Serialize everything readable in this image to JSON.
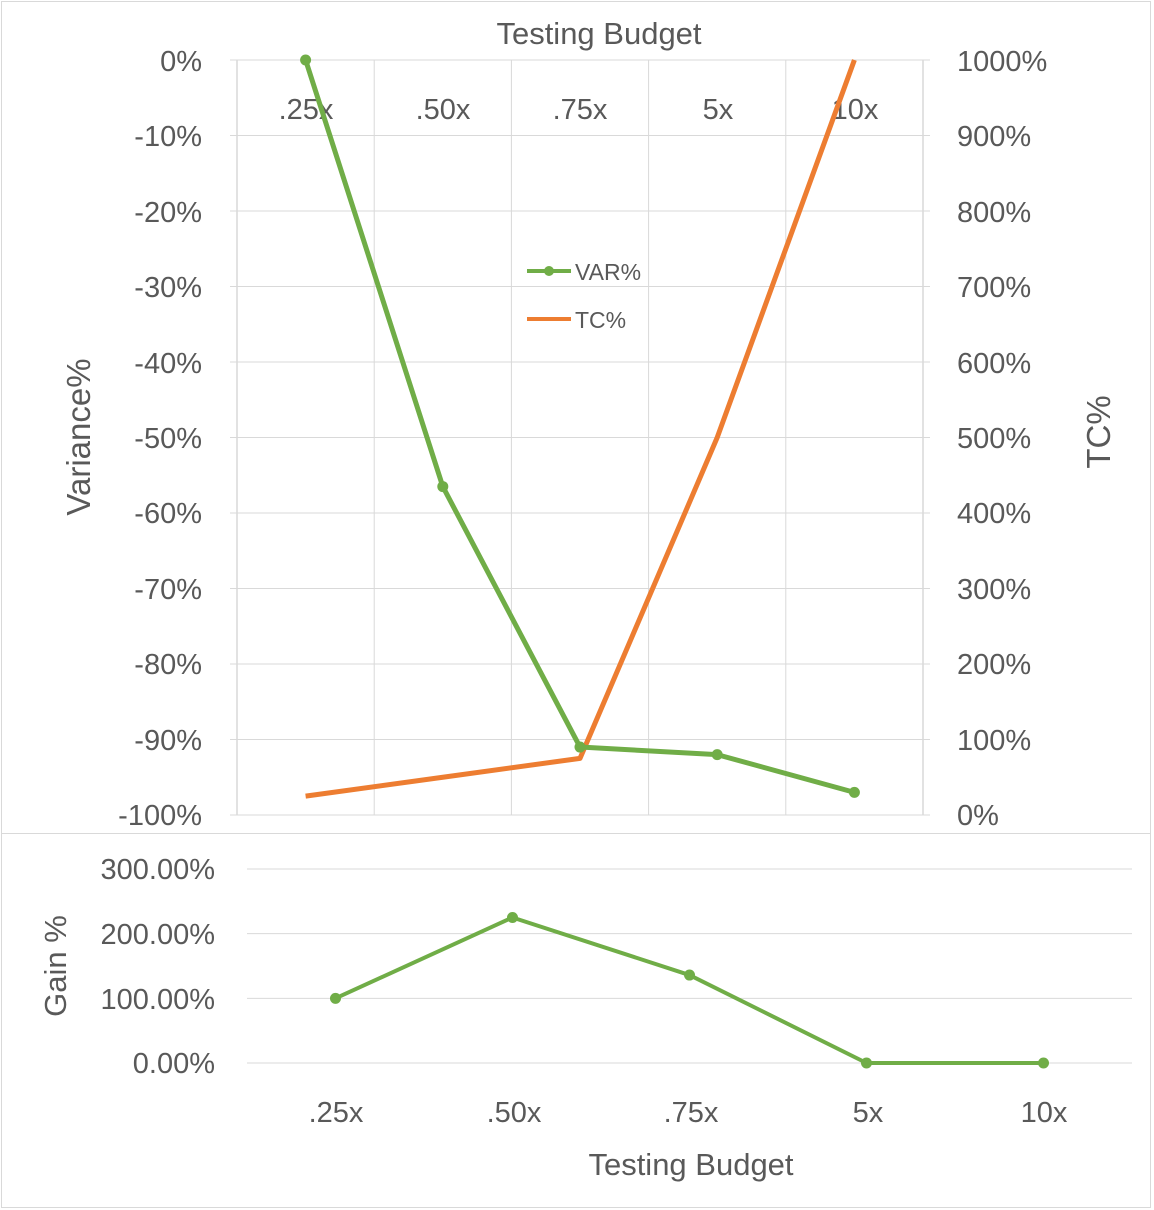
{
  "colors": {
    "var": "#70ad47",
    "tc": "#ed7d31",
    "grid": "#d9d9d9",
    "text": "#595959"
  },
  "chart_data": [
    {
      "type": "line",
      "title": "Testing Budget",
      "categories": [
        ".25x",
        ".50x",
        ".75x",
        "5x",
        "10x"
      ],
      "ylabel": "Variance%",
      "y2label": "TC%",
      "ylim": [
        -100,
        0
      ],
      "y2lim": [
        0,
        1000
      ],
      "y_ticks": [
        "0%",
        "-10%",
        "-20%",
        "-30%",
        "-40%",
        "-50%",
        "-60%",
        "-70%",
        "-80%",
        "-90%",
        "-100%"
      ],
      "y2_ticks": [
        "1000%",
        "900%",
        "800%",
        "700%",
        "600%",
        "500%",
        "400%",
        "300%",
        "200%",
        "100%",
        "0%"
      ],
      "x_axis_position": "top",
      "grid": true,
      "legend": "center",
      "series": [
        {
          "name": "VAR%",
          "axis": "left",
          "markers": true,
          "values": [
            0,
            -56.5,
            -91,
            -92,
            -97
          ]
        },
        {
          "name": "TC%",
          "axis": "right",
          "markers": false,
          "values": [
            25,
            50,
            75,
            500,
            1000
          ]
        }
      ]
    },
    {
      "type": "line",
      "xlabel": "Testing Budget",
      "ylabel": "Gain %",
      "categories": [
        ".25x",
        ".50x",
        ".75x",
        "5x",
        "10x"
      ],
      "ylim": [
        0,
        300
      ],
      "y_ticks": [
        "300.00%",
        "200.00%",
        "100.00%",
        "0.00%"
      ],
      "grid": true,
      "series": [
        {
          "markers": true,
          "values": [
            100,
            225,
            136,
            0,
            0
          ]
        }
      ]
    }
  ]
}
